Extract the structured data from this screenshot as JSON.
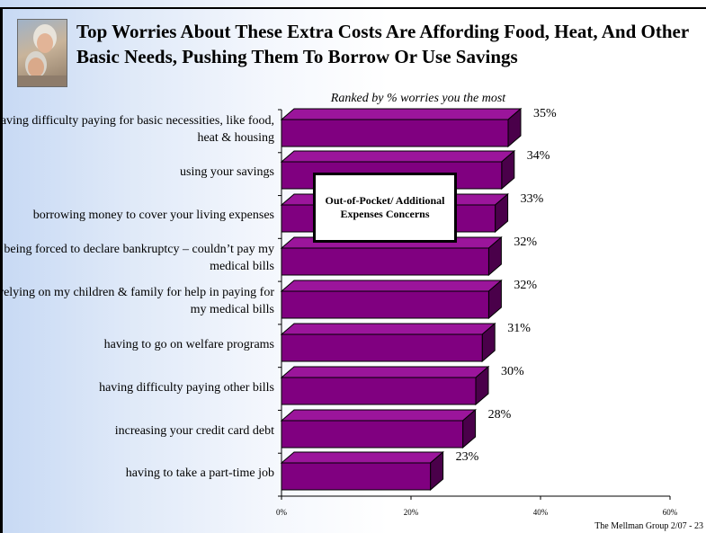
{
  "title": "Top Worries About These Extra Costs Are Affording Food, Heat, And Other Basic Needs, Pushing Them To Borrow Or Use Savings",
  "subtitle": "Ranked by %  worries you the most",
  "callout": "Out-of-Pocket/ Additional Expenses Concerns",
  "footer": "The Mellman Group  2/07 - 23",
  "colors": {
    "bar_front": "#800080",
    "bar_top": "#9b159b",
    "bar_side": "#4a004a"
  },
  "chart_data": {
    "type": "bar",
    "orientation": "horizontal",
    "categories": [
      "having difficulty paying for basic necessities, like food, heat & housing",
      "using your savings",
      "borrowing money to cover your living expenses",
      "being forced to declare bankruptcy – couldn’t pay my medical bills",
      "relying on my children & family for help in paying for my medical bills",
      "having to go on welfare programs",
      "having difficulty paying other bills",
      "increasing your credit card debt",
      "having to take a part-time job"
    ],
    "values": [
      35,
      34,
      33,
      32,
      32,
      31,
      30,
      28,
      23
    ],
    "value_labels": [
      "35%",
      "34%",
      "33%",
      "32%",
      "32%",
      "31%",
      "30%",
      "28%",
      "23%"
    ],
    "xlim": [
      0,
      60
    ],
    "xticks": [
      "0%",
      "20%",
      "40%",
      "60%"
    ],
    "grid": false
  }
}
